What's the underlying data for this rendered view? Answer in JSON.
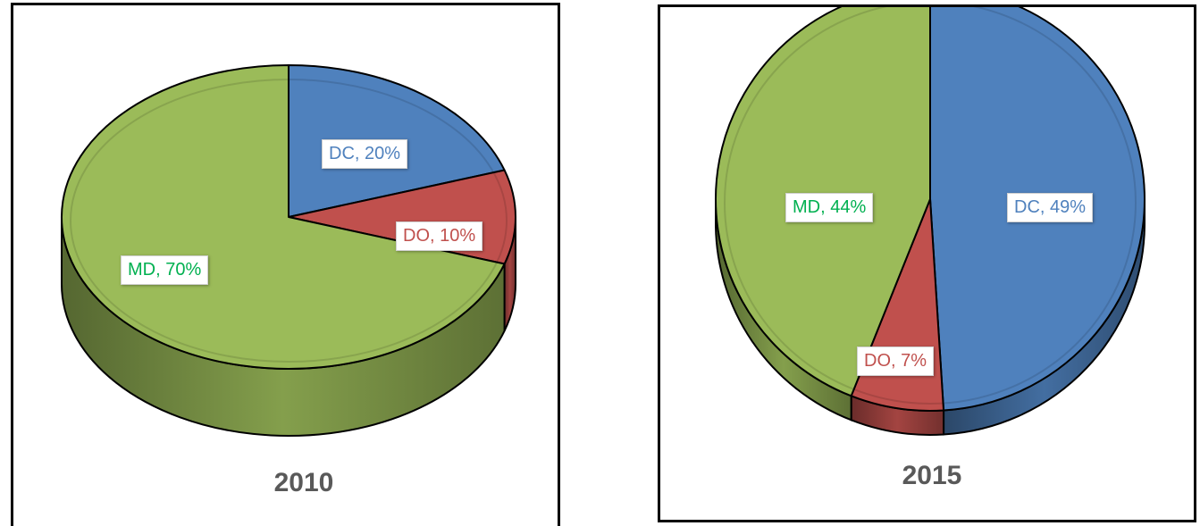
{
  "chart_data": [
    {
      "type": "pie",
      "title": "2010",
      "categories": [
        "DC",
        "DO",
        "MD"
      ],
      "values": [
        20,
        10,
        70
      ],
      "data_labels": [
        "DC, 20%",
        "DO, 10%",
        "MD, 70%"
      ],
      "colors": [
        "#4f81bd",
        "#c0504d",
        "#9bbb59"
      ],
      "label_colors": [
        "#4f81bd",
        "#c0504d",
        "#00b050"
      ],
      "style": "3d",
      "legend": "none"
    },
    {
      "type": "pie",
      "title": "2015",
      "categories": [
        "DC",
        "DO",
        "MD"
      ],
      "values": [
        49,
        7,
        44
      ],
      "data_labels": [
        "DC, 49%",
        "DO, 7%",
        "MD, 44%"
      ],
      "colors": [
        "#4f81bd",
        "#c0504d",
        "#9bbb59"
      ],
      "label_colors": [
        "#4f81bd",
        "#c0504d",
        "#00b050"
      ],
      "style": "3d",
      "legend": "none"
    }
  ]
}
